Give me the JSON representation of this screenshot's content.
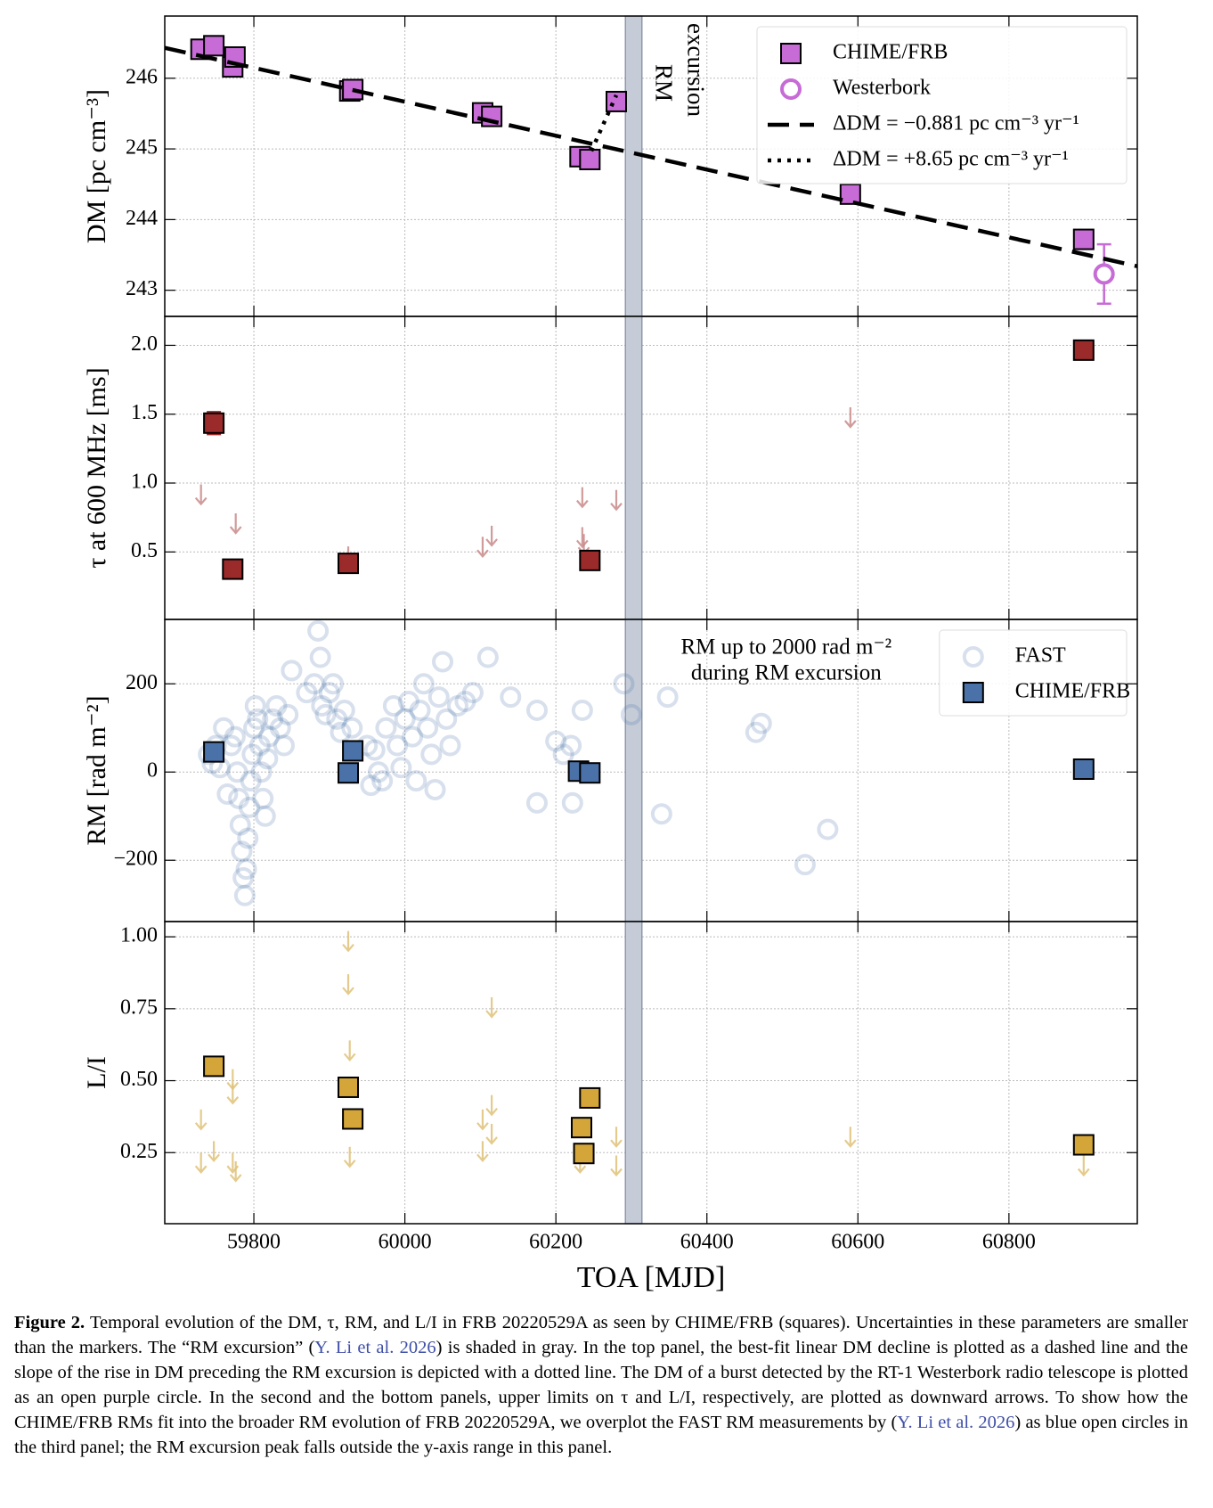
{
  "chart_data": [
    {
      "type": "scatter",
      "ylabel": "DM [pc cm⁻³]",
      "xlim": [
        59682,
        60970
      ],
      "xticks": [
        59800,
        60000,
        60200,
        60400,
        60600,
        60800
      ],
      "ylim": [
        242.63,
        246.88
      ],
      "yticks": [
        243,
        244,
        245,
        246
      ],
      "grid": true,
      "legend": "upper right",
      "shaded_region": [
        60292,
        60314
      ],
      "annotation": [
        "RM",
        "excursion"
      ],
      "series": [
        {
          "name": "CHIME/FRB",
          "marker": "square",
          "color": "#c76bd6",
          "x": [
            59730,
            59747,
            59772,
            59775,
            59927,
            59931,
            60103,
            60115,
            60232,
            60245,
            60280,
            60590,
            60899
          ],
          "values": [
            246.41,
            246.46,
            246.16,
            246.3,
            245.82,
            245.84,
            245.51,
            245.46,
            244.89,
            244.85,
            245.67,
            244.36,
            243.72
          ]
        },
        {
          "name": "Westerbork",
          "marker": "circle",
          "color": "#c76bd6",
          "x": [
            60926
          ],
          "values": [
            243.23
          ],
          "errors": [
            0.42
          ]
        },
        {
          "name": "ΔDM = −0.881 pc cm⁻³ yr⁻¹",
          "marker": "line",
          "dash": "dashed",
          "color": "#000000",
          "x": [
            59682,
            60970
          ],
          "values": [
            246.43,
            243.34
          ]
        },
        {
          "name": "ΔDM = +8.65 pc cm⁻³ yr⁻¹",
          "marker": "line",
          "dash": "dotted",
          "color": "#000000",
          "x": [
            60247,
            60280
          ],
          "values": [
            244.97,
            245.76
          ]
        }
      ]
    },
    {
      "type": "scatter",
      "ylabel": "τ at 600 MHz [ms]",
      "xlim": [
        59682,
        60970
      ],
      "xticks": [
        59800,
        60000,
        60200,
        60400,
        60600,
        60800
      ],
      "ylim": [
        0.01,
        2.21
      ],
      "yticks": [
        0.5,
        {
          "value": 1,
          "label": "1.0"
        },
        1.5,
        {
          "value": 2,
          "label": "2.0"
        }
      ],
      "grid": true,
      "shaded_region": [
        60292,
        60314
      ],
      "series": [
        {
          "marker": "arrow",
          "color": "#c98a8a",
          "x": [
            59730,
            59776,
            59925,
            60103,
            60115,
            60235,
            60280,
            60235,
            60237,
            60590
          ],
          "values": [
            0.99,
            0.78,
            0.54,
            0.61,
            0.69,
            0.97,
            0.95,
            0.68,
            0.63,
            1.55
          ]
        },
        {
          "marker": "square",
          "color": "#9b2a2a",
          "x": [
            59747,
            59772,
            59925,
            60245,
            60899
          ],
          "values": [
            1.435,
            0.375,
            0.417,
            0.438,
            1.965
          ],
          "errors": [
            0.08,
            null,
            null,
            null,
            null
          ]
        }
      ]
    },
    {
      "type": "scatter",
      "ylabel": "RM [rad m⁻²]",
      "xlim": [
        59682,
        60970
      ],
      "xticks": [
        59800,
        60000,
        60200,
        60400,
        60600,
        60800
      ],
      "ylim": [
        -339,
        346
      ],
      "yticks": [
        {
          "value": -200,
          "label": "−200"
        },
        0,
        200
      ],
      "grid": true,
      "legend": "upper right",
      "shaded_region": [
        60292,
        60314
      ],
      "annotation": [
        "RM up to 2000 rad m⁻²",
        "during RM excursion"
      ],
      "series": [
        {
          "name": "FAST",
          "marker": "circle",
          "color": "#4a72a8",
          "alpha": 0.22,
          "x": [
            59740,
            59745,
            59750,
            59755,
            59760,
            59765,
            59770,
            59775,
            59778,
            59780,
            59782,
            59784,
            59786,
            59788,
            59790,
            59792,
            59794,
            59796,
            59798,
            59800,
            59802,
            59805,
            59808,
            59810,
            59812,
            59815,
            59818,
            59820,
            59825,
            59830,
            59835,
            59840,
            59845,
            59850,
            59870,
            59880,
            59885,
            59888,
            59890,
            59895,
            59900,
            59905,
            59910,
            59915,
            59920,
            59930,
            59950,
            59955,
            59960,
            59965,
            59970,
            59975,
            59985,
            59990,
            59995,
            60000,
            60005,
            60010,
            60015,
            60020,
            60025,
            60030,
            60035,
            60040,
            60045,
            60050,
            60055,
            60060,
            60070,
            60080,
            60090,
            60110,
            60140,
            60175,
            60200,
            60210,
            60220,
            60235,
            60290,
            60300,
            60348,
            60465,
            60472,
            60222,
            60175,
            60340,
            60530,
            60560
          ],
          "values": [
            40,
            20,
            60,
            10,
            100,
            -50,
            60,
            80,
            0,
            -60,
            -120,
            -180,
            -240,
            -280,
            -220,
            -150,
            -80,
            -20,
            40,
            100,
            150,
            120,
            60,
            0,
            -60,
            -100,
            30,
            80,
            120,
            150,
            100,
            60,
            130,
            230,
            180,
            200,
            320,
            260,
            150,
            130,
            180,
            200,
            120,
            90,
            140,
            100,
            60,
            -30,
            50,
            0,
            -20,
            100,
            150,
            60,
            10,
            120,
            160,
            80,
            -20,
            140,
            200,
            100,
            40,
            -40,
            170,
            250,
            120,
            60,
            150,
            160,
            180,
            260,
            170,
            140,
            70,
            40,
            60,
            140,
            200,
            130,
            170,
            90,
            110,
            -70,
            -70,
            -95,
            -210,
            -130
          ]
        },
        {
          "name": "CHIME/FRB",
          "marker": "square",
          "color": "#4a72a8",
          "x": [
            59747,
            59925,
            59931,
            60230,
            60245,
            60899
          ],
          "values": [
            45.6,
            -2,
            48,
            2,
            -2,
            6.5
          ]
        }
      ]
    },
    {
      "type": "scatter",
      "ylabel": "L/I",
      "xlabel": "TOA [MJD]",
      "xlim": [
        59682,
        60970
      ],
      "xticks": [
        59800,
        60000,
        60200,
        60400,
        60600,
        60800
      ],
      "ylim": [
        0.003,
        1.053
      ],
      "yticks": [
        0.25,
        {
          "value": 0.5,
          "label": "0.50"
        },
        0.75,
        {
          "value": 1,
          "label": "1.00"
        }
      ],
      "grid": true,
      "shaded_region": [
        60292,
        60314
      ],
      "series": [
        {
          "marker": "arrow",
          "color": "#e0c27a",
          "x": [
            59730,
            59730,
            59747,
            59772,
            59772,
            59772,
            59776,
            59925,
            59925,
            59927,
            59927,
            60103,
            60103,
            60115,
            60115,
            60115,
            60232,
            60280,
            60280,
            60590,
            60899
          ],
          "values": [
            0.4,
            0.25,
            0.29,
            0.54,
            0.49,
            0.25,
            0.22,
            1.02,
            0.87,
            0.64,
            0.27,
            0.4,
            0.29,
            0.79,
            0.45,
            0.35,
            0.25,
            0.34,
            0.24,
            0.34,
            0.24
          ]
        },
        {
          "marker": "square",
          "color": "#d4a63a",
          "x": [
            59747,
            59925,
            59931,
            60234,
            60245,
            60237,
            60899
          ],
          "values": [
            0.55,
            0.477,
            0.367,
            0.337,
            0.44,
            0.247,
            0.277
          ]
        }
      ]
    }
  ],
  "caption": {
    "label": "Figure 2.",
    "parts": [
      "Temporal evolution of the DM, τ, RM, and L/I in FRB 20220529A as seen by CHIME/FRB (squares). Uncertainties in these parameters are smaller than the markers. The “RM excursion” (",
      "Y. Li et al. 2026",
      ") is shaded in gray. In the top panel, the best-fit linear DM decline is plotted as a dashed line and the slope of the rise in DM preceding the RM excursion is depicted with a dotted line. The DM of a burst detected by the RT-1 Westerbork radio telescope is plotted as an open purple circle. In the second and the bottom panels, upper limits on τ and L/I, respectively, are plotted as downward arrows. To show how the CHIME/FRB RMs fit into the broader RM evolution of FRB 20220529A, we overplot the FAST RM measurements by (",
      "Y. Li et al. 2026",
      ") as blue open circles in the third panel; the RM excursion peak falls outside the y-axis range in this panel."
    ]
  }
}
